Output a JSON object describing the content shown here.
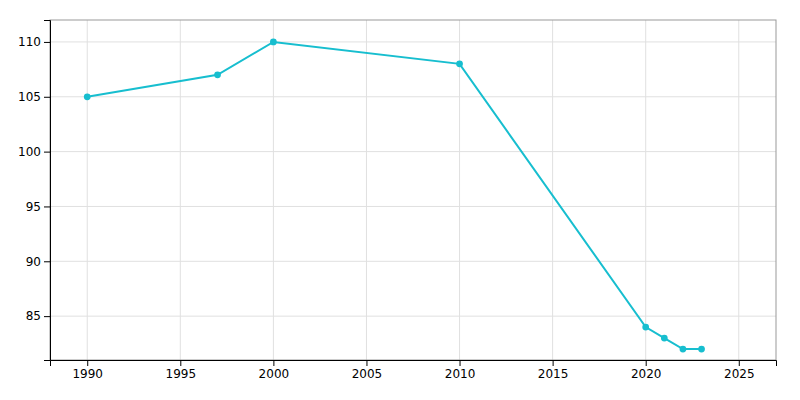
{
  "chart_data": {
    "type": "line",
    "x": [
      1990,
      1997,
      2000,
      2010,
      2020,
      2021,
      2022,
      2023
    ],
    "values": [
      105,
      107,
      110,
      108,
      84,
      83,
      82,
      82
    ],
    "color": "#17becf",
    "marker": "circle",
    "xlim": [
      1988,
      2027
    ],
    "ylim": [
      81,
      112
    ],
    "xticks": [
      1990,
      1995,
      2000,
      2005,
      2010,
      2015,
      2020,
      2025
    ],
    "yticks": [
      85,
      90,
      95,
      100,
      105,
      110
    ],
    "grid": true
  }
}
